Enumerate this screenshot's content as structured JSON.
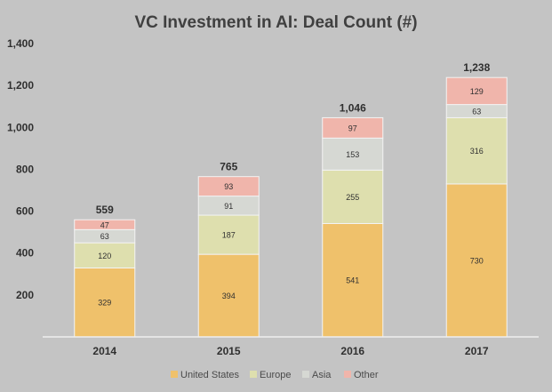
{
  "chart_data": {
    "type": "bar",
    "title": "VC Investment in AI: Deal Count (#)",
    "xlabel": "",
    "ylabel": "",
    "categories": [
      "2014",
      "2015",
      "2016",
      "2017"
    ],
    "series": [
      {
        "name": "United States",
        "values": [
          329,
          394,
          541,
          730
        ],
        "color": "#efc16b"
      },
      {
        "name": "Europe",
        "values": [
          120,
          187,
          255,
          316
        ],
        "color": "#dedfae"
      },
      {
        "name": "Asia",
        "values": [
          63,
          91,
          153,
          63
        ],
        "color": "#d6d8d3"
      },
      {
        "name": "Other",
        "values": [
          47,
          93,
          97,
          129
        ],
        "color": "#f0b5ab"
      }
    ],
    "totals": [
      "559",
      "765",
      "1,046",
      "1,238"
    ],
    "ylim": [
      0,
      1400
    ],
    "yticks": [
      200,
      400,
      600,
      800,
      1000,
      1200,
      1400
    ],
    "ytick_labels": [
      "200",
      "400",
      "600",
      "800",
      "1,000",
      "1,200",
      "1,400"
    ],
    "stacked": true,
    "grid": false,
    "legend_position": "bottom"
  }
}
